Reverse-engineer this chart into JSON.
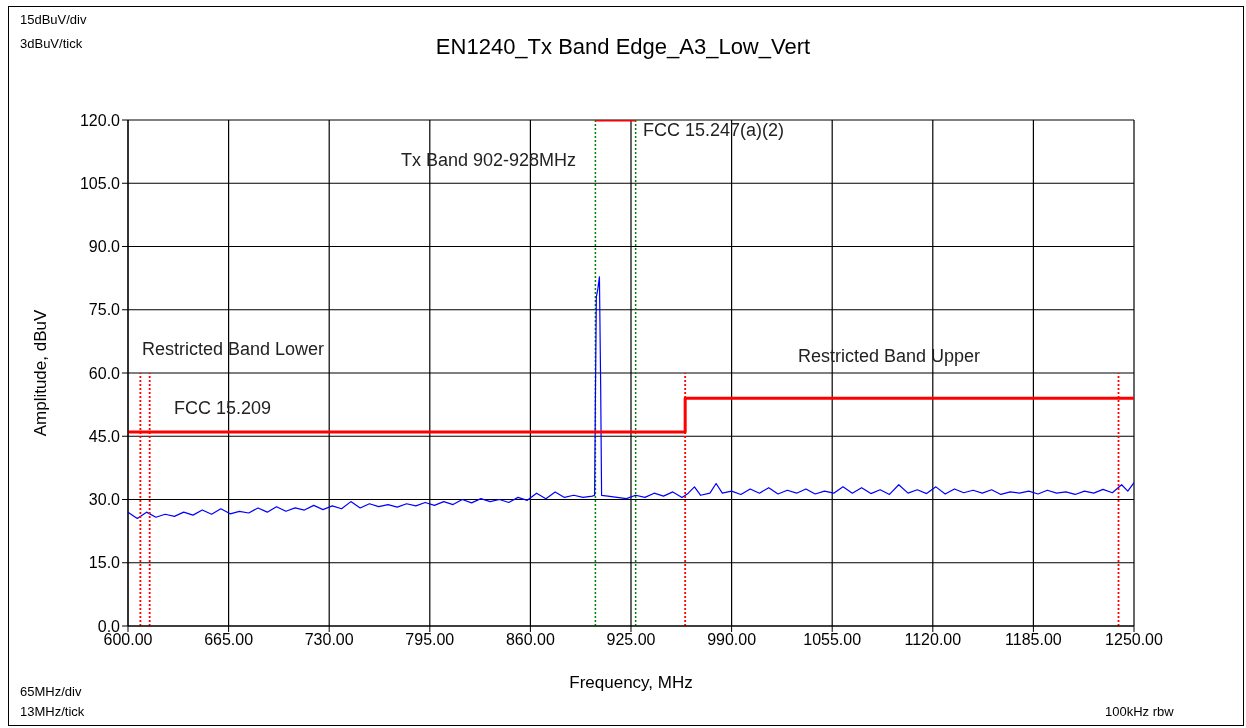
{
  "chart_data": {
    "type": "line",
    "title": "EN1240_Tx Band Edge_A3_Low_Vert",
    "xlabel": "Frequency, MHz",
    "ylabel": "Amplitude, dBuV",
    "xlim": [
      600,
      1250
    ],
    "xticks": [
      {
        "value": 600,
        "label": "600.00"
      },
      {
        "value": 665,
        "label": "665.00"
      },
      {
        "value": 730,
        "label": "730.00"
      },
      {
        "value": 795,
        "label": "795.00"
      },
      {
        "value": 860,
        "label": "860.00"
      },
      {
        "value": 925,
        "label": "925.00"
      },
      {
        "value": 990,
        "label": "990.00"
      },
      {
        "value": 1055,
        "label": "1055.00"
      },
      {
        "value": 1120,
        "label": "1120.00"
      },
      {
        "value": 1185,
        "label": "1185.00"
      },
      {
        "value": 1250,
        "label": "1250.00"
      }
    ],
    "ylim": [
      0,
      120
    ],
    "yticks": [
      {
        "value": 0,
        "label": "0.0"
      },
      {
        "value": 15,
        "label": "15.0"
      },
      {
        "value": 30,
        "label": "30.0"
      },
      {
        "value": 45,
        "label": "45.0"
      },
      {
        "value": 60,
        "label": "60.0"
      },
      {
        "value": 75,
        "label": "75.0"
      },
      {
        "value": 90,
        "label": "90.0"
      },
      {
        "value": 105,
        "label": "105.0"
      },
      {
        "value": 120,
        "label": "120.0"
      }
    ],
    "grid": true,
    "series": [
      {
        "color": "#0000ff",
        "x": [
          600,
          606,
          612,
          618,
          624,
          630,
          636,
          642,
          648,
          654,
          660,
          666,
          672,
          678,
          684,
          690,
          696,
          702,
          708,
          714,
          720,
          726,
          732,
          738,
          744,
          750,
          756,
          762,
          768,
          774,
          780,
          786,
          792,
          798,
          804,
          810,
          816,
          822,
          828,
          834,
          840,
          846,
          852,
          858,
          864,
          870,
          876,
          882,
          888,
          894,
          900,
          901.5,
          902,
          902.6,
          903.6,
          904.6,
          905.4,
          906,
          910,
          916,
          922,
          928,
          934,
          940,
          946,
          952,
          958,
          962,
          966,
          970,
          976,
          980,
          984,
          990,
          996,
          1002,
          1008,
          1014,
          1020,
          1026,
          1032,
          1038,
          1044,
          1050,
          1056,
          1062,
          1068,
          1074,
          1080,
          1086,
          1092,
          1098,
          1104,
          1110,
          1116,
          1122,
          1128,
          1134,
          1140,
          1146,
          1152,
          1158,
          1164,
          1170,
          1176,
          1182,
          1188,
          1194,
          1200,
          1206,
          1212,
          1218,
          1224,
          1230,
          1236,
          1242,
          1246,
          1250
        ],
        "values": [
          27,
          25.5,
          27,
          25.8,
          26.5,
          26,
          27,
          26.3,
          27.5,
          26.5,
          27.8,
          26.6,
          27.2,
          26.8,
          28,
          27,
          28.3,
          27.2,
          28,
          27.5,
          28.6,
          27.6,
          28.5,
          27.8,
          29.5,
          28,
          29,
          28.3,
          28.8,
          28.2,
          29,
          28.5,
          29.3,
          28.6,
          29.5,
          28.8,
          30,
          29.2,
          30.2,
          29.5,
          30,
          29.3,
          30.5,
          29.8,
          31.5,
          30.2,
          31.8,
          30.5,
          31,
          30.5,
          30.8,
          31,
          54,
          78,
          80,
          82.8,
          57,
          31,
          30.8,
          30.5,
          30.2,
          31,
          30.5,
          31.5,
          30.8,
          31.8,
          30.5,
          31.5,
          33,
          31,
          31.5,
          33.8,
          31.5,
          32,
          31.2,
          32.5,
          31.5,
          32.8,
          31.3,
          32.2,
          31.5,
          32.5,
          31.3,
          32,
          31.5,
          33,
          31.5,
          32.8,
          31.4,
          32.3,
          31.2,
          33.5,
          31.5,
          32.3,
          31.4,
          33,
          31.3,
          32.5,
          31.6,
          32.2,
          31.5,
          32.3,
          31.2,
          31.8,
          31.5,
          32,
          31.3,
          32.2,
          31.5,
          31.8,
          31.2,
          32,
          31.5,
          32.4,
          31.6,
          33.5,
          32,
          34
        ]
      },
      {
        "color": "#ff0000",
        "x": [
          600,
          960,
          960,
          1250
        ],
        "values": [
          46,
          46,
          54,
          54
        ]
      },
      {
        "color": "#ff0000",
        "x": [
          902,
          928
        ],
        "values": [
          120,
          120
        ]
      },
      {
        "color": "#ff0000",
        "line_style": "dotted",
        "x": [
          608,
          608
        ],
        "values": [
          0,
          60
        ]
      },
      {
        "color": "#ff0000",
        "line_style": "dotted",
        "x": [
          614,
          614
        ],
        "values": [
          0,
          60
        ]
      },
      {
        "color": "#ff0000",
        "line_style": "dotted",
        "x": [
          960,
          960
        ],
        "values": [
          0,
          60
        ]
      },
      {
        "color": "#ff0000",
        "line_style": "dotted",
        "x": [
          1240,
          1240
        ],
        "values": [
          0,
          60
        ]
      }
    ],
    "ref_lines": [
      {
        "axis": "x",
        "value": 902,
        "color": "#008000",
        "line_style": "dotted"
      },
      {
        "axis": "x",
        "value": 928,
        "color": "#008000",
        "line_style": "dotted"
      }
    ],
    "annotations": [
      "15dBuV/div",
      "3dBuV/tick",
      "65MHz/div",
      "13MHz/tick",
      "100kHz rbw",
      "Restricted Band Lower",
      "FCC 15.209",
      "Restricted Band Upper",
      "Tx Band 902-928MHz",
      "FCC 15.247(a)(2)"
    ]
  }
}
